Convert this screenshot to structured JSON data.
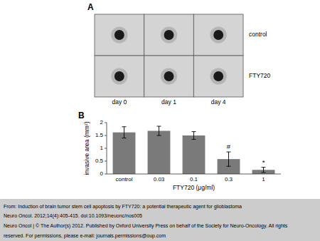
{
  "chart_data": [
    {
      "type": "image_grid",
      "title": "A",
      "rows": [
        "control",
        "FTY720"
      ],
      "columns": [
        "day 0",
        "day 1",
        "day 4"
      ]
    },
    {
      "type": "bar",
      "title": "B",
      "categories": [
        "control",
        "0.03",
        "0.1",
        "0.3",
        "1"
      ],
      "values": [
        1.62,
        1.68,
        1.5,
        0.58,
        0.16
      ],
      "errors": [
        0.22,
        0.18,
        0.15,
        0.28,
        0.1
      ],
      "color": "#7a7a7a",
      "xlabel": "FTY720 (μg/ml)",
      "ylabel": "invasive area (mm²)",
      "ylim": [
        0,
        2
      ],
      "yticks": [
        0,
        0.5,
        1,
        1.5,
        2
      ],
      "annotations": [
        {
          "category": "0.3",
          "text": "#"
        },
        {
          "category": "1",
          "text": "*"
        }
      ]
    }
  ],
  "footer": [
    "From: Induction of brain tumor stem cell apoptosis by FTY720: a potential therapeutic agent for glioblastoma",
    "Neuro Oncol. 2012;14(4):405-415. doi:10.1093/neuonc/nos005",
    "Neuro Oncol | © The Author(s) 2012. Published by Oxford University Press on behalf of the Society for Neuro-Oncology. All rights",
    "reserved. For permissions, please e-mail: journals.permissions@oup.com"
  ]
}
